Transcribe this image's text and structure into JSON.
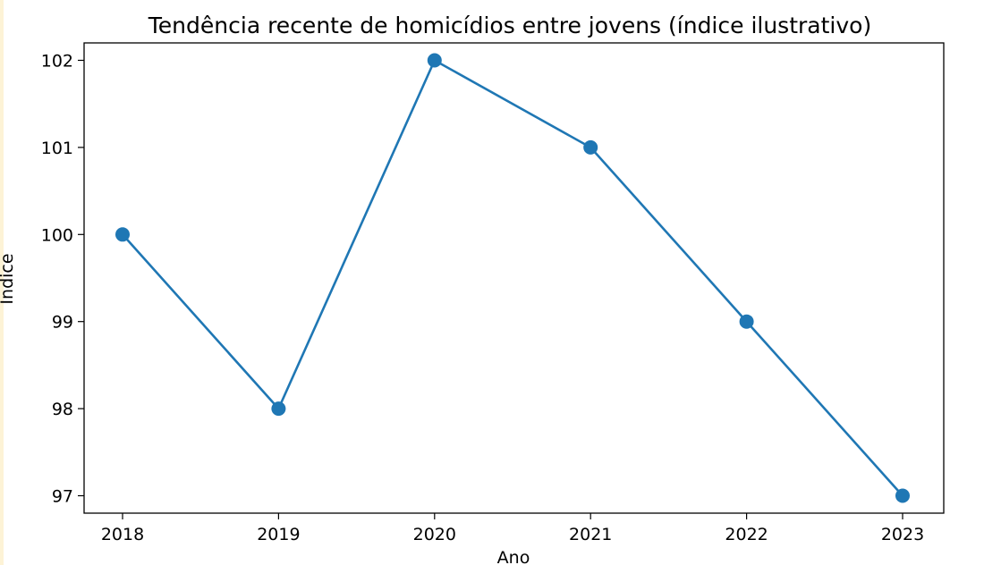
{
  "chart_data": {
    "type": "line",
    "title": "Tendência recente de homicídios entre jovens (índice ilustrativo)",
    "xlabel": "Ano",
    "ylabel": "Índice",
    "x": [
      "2018",
      "2019",
      "2020",
      "2021",
      "2022",
      "2023"
    ],
    "series": [
      {
        "values": [
          100,
          98,
          102,
          101,
          99,
          97
        ],
        "color": "#1f77b4",
        "marker": "circle"
      }
    ],
    "yticks": [
      97,
      98,
      99,
      100,
      101,
      102
    ],
    "ylim": [
      96.8,
      102.2
    ],
    "grid": false,
    "legend": false
  }
}
